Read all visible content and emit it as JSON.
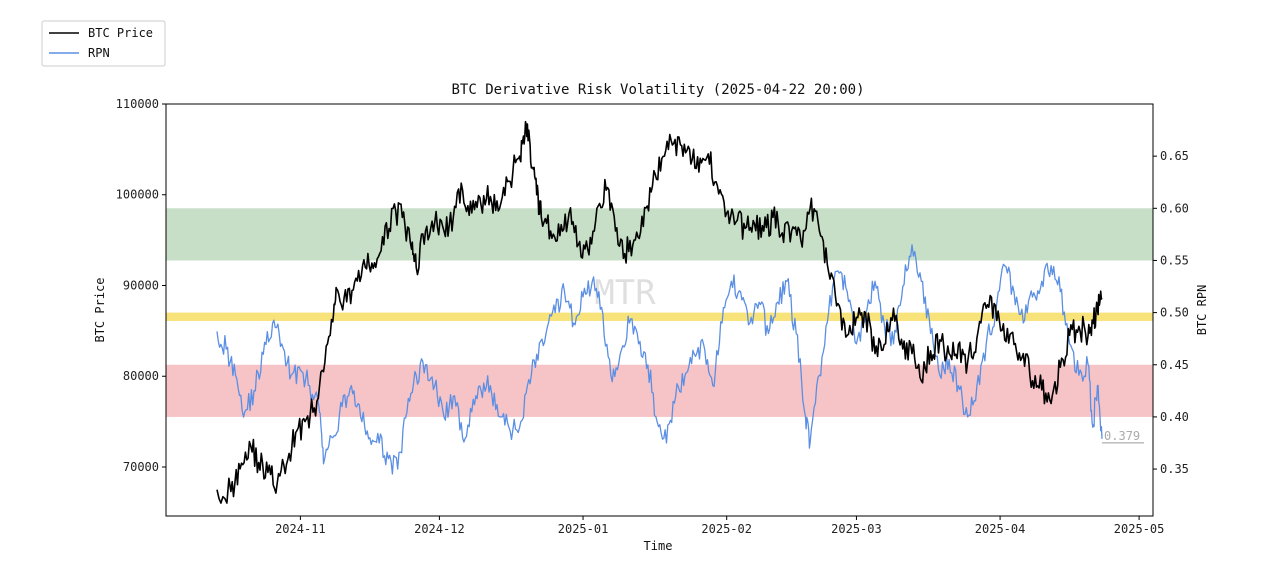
{
  "chart_data": {
    "type": "line",
    "title": "BTC Derivative Risk Volatility (2025-04-22 20:00)",
    "xlabel": "Time",
    "ylabel_left": "BTC Price",
    "ylabel_right": "BTC RPN",
    "x_ticks": [
      "2024-11",
      "2024-12",
      "2025-01",
      "2025-02",
      "2025-03",
      "2025-04",
      "2025-05"
    ],
    "x_tick_days": [
      0,
      30,
      61,
      92,
      120,
      151,
      181
    ],
    "x_range_days": [
      -29,
      184
    ],
    "left_ylim": [
      64600,
      110000
    ],
    "left_ticks": [
      70000,
      80000,
      90000,
      100000,
      110000
    ],
    "right_ylim": [
      0.305,
      0.7
    ],
    "right_ticks": [
      0.35,
      0.4,
      0.45,
      0.5,
      0.55,
      0.6,
      0.65
    ],
    "bands": [
      {
        "name": "high-risk-band",
        "axis": "right",
        "from": 0.55,
        "to": 0.6,
        "color": "#c6dfc6"
      },
      {
        "name": "mid-line-band",
        "axis": "right",
        "from": 0.492,
        "to": 0.5,
        "color": "#f8e27a"
      },
      {
        "name": "low-risk-band",
        "axis": "right",
        "from": 0.4,
        "to": 0.45,
        "color": "#f6c3c6"
      }
    ],
    "annotation": {
      "text": "0.379",
      "day": 173,
      "value": 0.379
    },
    "watermark": "MTR",
    "legend_position": "top-left",
    "series": [
      {
        "name": "BTC Price",
        "axis": "left",
        "color": "#000000",
        "points": [
          [
            -18,
            67500
          ],
          [
            -15,
            67300
          ],
          [
            -13,
            69800
          ],
          [
            -11,
            72800
          ],
          [
            -9,
            70500
          ],
          [
            -7,
            69400
          ],
          [
            -5,
            68200
          ],
          [
            -3,
            70300
          ],
          [
            -1,
            73800
          ],
          [
            1,
            75000
          ],
          [
            3,
            76500
          ],
          [
            5,
            80500
          ],
          [
            7,
            86000
          ],
          [
            8,
            89500
          ],
          [
            10,
            88200
          ],
          [
            12,
            90800
          ],
          [
            14,
            92000
          ],
          [
            16,
            92500
          ],
          [
            18,
            94500
          ],
          [
            20,
            98500
          ],
          [
            22,
            97500
          ],
          [
            24,
            94000
          ],
          [
            25,
            92000
          ],
          [
            27,
            96000
          ],
          [
            29,
            97000
          ],
          [
            31,
            96000
          ],
          [
            33,
            97500
          ],
          [
            35,
            100500
          ],
          [
            37,
            98000
          ],
          [
            39,
            98800
          ],
          [
            41,
            99800
          ],
          [
            43,
            98500
          ],
          [
            45,
            101500
          ],
          [
            47,
            104000
          ],
          [
            48,
            106000
          ],
          [
            49,
            107800
          ],
          [
            50,
            103000
          ],
          [
            51,
            100000
          ],
          [
            52,
            97500
          ],
          [
            54,
            96000
          ],
          [
            56,
            95500
          ],
          [
            58,
            98000
          ],
          [
            60,
            94500
          ],
          [
            62,
            94000
          ],
          [
            64,
            98500
          ],
          [
            66,
            100500
          ],
          [
            68,
            96000
          ],
          [
            70,
            93500
          ],
          [
            72,
            95000
          ],
          [
            74,
            96500
          ],
          [
            76,
            101000
          ],
          [
            78,
            104000
          ],
          [
            80,
            106000
          ],
          [
            82,
            105500
          ],
          [
            84,
            105000
          ],
          [
            86,
            102500
          ],
          [
            88,
            104500
          ],
          [
            90,
            101000
          ],
          [
            92,
            98000
          ],
          [
            94,
            97000
          ],
          [
            96,
            96300
          ],
          [
            98,
            96800
          ],
          [
            100,
            96000
          ],
          [
            102,
            97500
          ],
          [
            104,
            95800
          ],
          [
            106,
            96000
          ],
          [
            108,
            95000
          ],
          [
            110,
            98500
          ],
          [
            112,
            96000
          ],
          [
            114,
            91500
          ],
          [
            116,
            88000
          ],
          [
            118,
            84500
          ],
          [
            120,
            86500
          ],
          [
            122,
            87000
          ],
          [
            124,
            82500
          ],
          [
            126,
            83500
          ],
          [
            128,
            87500
          ],
          [
            130,
            83000
          ],
          [
            132,
            82500
          ],
          [
            134,
            79500
          ],
          [
            136,
            82800
          ],
          [
            138,
            84000
          ],
          [
            140,
            82500
          ],
          [
            142,
            83500
          ],
          [
            144,
            81500
          ],
          [
            146,
            84200
          ],
          [
            148,
            87500
          ],
          [
            150,
            87800
          ],
          [
            152,
            84000
          ],
          [
            154,
            83500
          ],
          [
            156,
            82500
          ],
          [
            158,
            79500
          ],
          [
            160,
            78500
          ],
          [
            162,
            77000
          ],
          [
            164,
            81000
          ],
          [
            166,
            84500
          ],
          [
            168,
            85500
          ],
          [
            170,
            84500
          ],
          [
            171,
            85800
          ],
          [
            172,
            87300
          ],
          [
            173,
            88600
          ]
        ]
      },
      {
        "name": "RPN",
        "axis": "right",
        "color": "#5b8fe4",
        "points": [
          [
            -18,
            0.482
          ],
          [
            -16,
            0.465
          ],
          [
            -14,
            0.44
          ],
          [
            -12,
            0.405
          ],
          [
            -10,
            0.425
          ],
          [
            -8,
            0.46
          ],
          [
            -6,
            0.49
          ],
          [
            -4,
            0.47
          ],
          [
            -2,
            0.44
          ],
          [
            0,
            0.445
          ],
          [
            2,
            0.43
          ],
          [
            4,
            0.41
          ],
          [
            5,
            0.355
          ],
          [
            7,
            0.38
          ],
          [
            9,
            0.41
          ],
          [
            11,
            0.43
          ],
          [
            13,
            0.4
          ],
          [
            15,
            0.38
          ],
          [
            17,
            0.375
          ],
          [
            19,
            0.36
          ],
          [
            21,
            0.35
          ],
          [
            23,
            0.405
          ],
          [
            25,
            0.44
          ],
          [
            27,
            0.45
          ],
          [
            29,
            0.43
          ],
          [
            31,
            0.4
          ],
          [
            33,
            0.42
          ],
          [
            35,
            0.38
          ],
          [
            37,
            0.405
          ],
          [
            39,
            0.425
          ],
          [
            41,
            0.43
          ],
          [
            43,
            0.4
          ],
          [
            45,
            0.39
          ],
          [
            47,
            0.385
          ],
          [
            49,
            0.43
          ],
          [
            51,
            0.46
          ],
          [
            53,
            0.48
          ],
          [
            55,
            0.5
          ],
          [
            57,
            0.52
          ],
          [
            59,
            0.49
          ],
          [
            61,
            0.515
          ],
          [
            63,
            0.53
          ],
          [
            65,
            0.505
          ],
          [
            67,
            0.44
          ],
          [
            69,
            0.46
          ],
          [
            71,
            0.49
          ],
          [
            73,
            0.47
          ],
          [
            75,
            0.45
          ],
          [
            77,
            0.395
          ],
          [
            79,
            0.375
          ],
          [
            81,
            0.42
          ],
          [
            83,
            0.44
          ],
          [
            85,
            0.46
          ],
          [
            87,
            0.47
          ],
          [
            89,
            0.43
          ],
          [
            91,
            0.49
          ],
          [
            93,
            0.53
          ],
          [
            95,
            0.52
          ],
          [
            97,
            0.49
          ],
          [
            99,
            0.51
          ],
          [
            101,
            0.48
          ],
          [
            103,
            0.51
          ],
          [
            105,
            0.53
          ],
          [
            107,
            0.48
          ],
          [
            109,
            0.4
          ],
          [
            110,
            0.375
          ],
          [
            112,
            0.44
          ],
          [
            114,
            0.5
          ],
          [
            116,
            0.54
          ],
          [
            118,
            0.52
          ],
          [
            120,
            0.47
          ],
          [
            122,
            0.5
          ],
          [
            124,
            0.53
          ],
          [
            126,
            0.49
          ],
          [
            128,
            0.47
          ],
          [
            130,
            0.525
          ],
          [
            132,
            0.565
          ],
          [
            134,
            0.53
          ],
          [
            136,
            0.48
          ],
          [
            138,
            0.44
          ],
          [
            140,
            0.455
          ],
          [
            142,
            0.43
          ],
          [
            144,
            0.4
          ],
          [
            146,
            0.43
          ],
          [
            148,
            0.47
          ],
          [
            150,
            0.5
          ],
          [
            152,
            0.545
          ],
          [
            154,
            0.52
          ],
          [
            156,
            0.49
          ],
          [
            158,
            0.515
          ],
          [
            160,
            0.53
          ],
          [
            162,
            0.545
          ],
          [
            164,
            0.52
          ],
          [
            166,
            0.47
          ],
          [
            168,
            0.44
          ],
          [
            170,
            0.45
          ],
          [
            171,
            0.39
          ],
          [
            172,
            0.43
          ],
          [
            173,
            0.379
          ]
        ]
      }
    ]
  }
}
